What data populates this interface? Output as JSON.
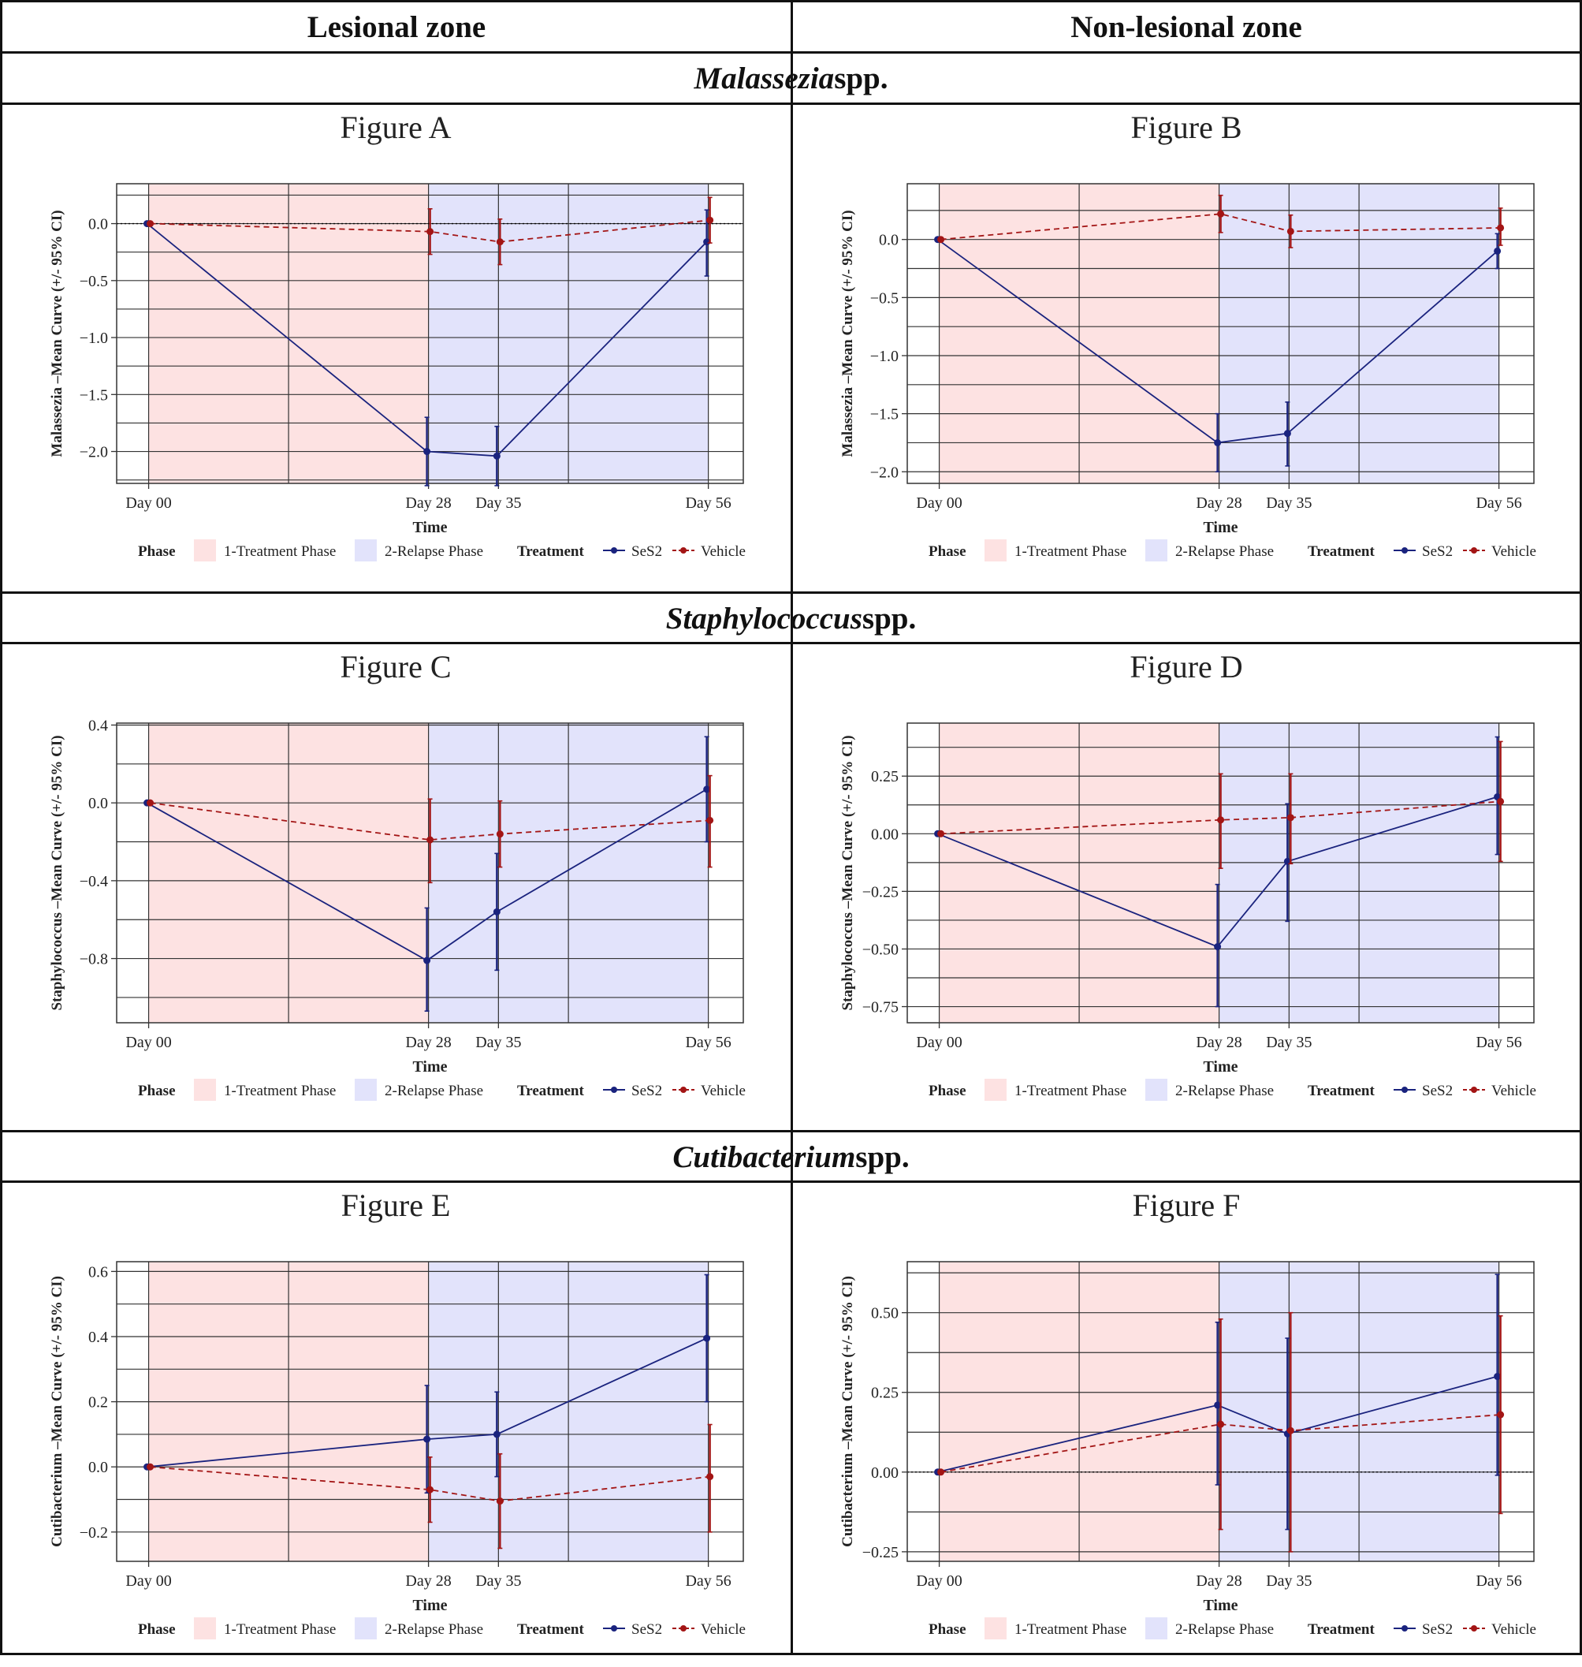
{
  "headers": {
    "lesional": "Lesional zone",
    "nonlesional": "Non-lesional zone"
  },
  "species": [
    {
      "name": "Malassezia",
      "suffix": " spp."
    },
    {
      "name": "Staphylococcus",
      "suffix": " spp."
    },
    {
      "name": "Cutibacterium",
      "suffix": " spp."
    }
  ],
  "legend": {
    "phase_title": "Phase",
    "phase1": "1-Treatment Phase",
    "phase2": "2-Relapse Phase",
    "treatment_title": "Treatment",
    "ses2": "SeS2",
    "vehicle": "Vehicle"
  },
  "colors": {
    "phase1": "#fde2e2",
    "phase2": "#e2e3fb",
    "ses2": "#1a237e",
    "vehicle": "#a31515"
  },
  "chart_data": [
    {
      "type": "line",
      "title": "Figure A",
      "xlabel": "Time",
      "ylabel": "Malassezia –Mean Curve (+/- 95% CI)",
      "categories": [
        "Day 00",
        "Day 28",
        "Day 35",
        "Day 56"
      ],
      "x": [
        0,
        28,
        35,
        56
      ],
      "ylim": [
        -2.28,
        0.35
      ],
      "yticks": [
        0.0,
        -0.5,
        -1.0,
        -1.5,
        -2.0
      ],
      "ytick_labels": [
        "0.0",
        "−0.5",
        "−1.0",
        "−1.5",
        "−2.0"
      ],
      "zero_line": true,
      "series": [
        {
          "name": "SeS2",
          "values": [
            0.0,
            -2.0,
            -2.04,
            -0.16
          ],
          "ci_low": [
            0.0,
            -2.3,
            -2.3,
            -0.46
          ],
          "ci_high": [
            0.0,
            -1.7,
            -1.78,
            0.12
          ]
        },
        {
          "name": "Vehicle",
          "values": [
            0.0,
            -0.07,
            -0.16,
            0.03
          ],
          "ci_low": [
            0.0,
            -0.27,
            -0.36,
            -0.17
          ],
          "ci_high": [
            0.0,
            0.13,
            0.04,
            0.23
          ]
        }
      ]
    },
    {
      "type": "line",
      "title": "Figure B",
      "xlabel": "Time",
      "ylabel": "Malassezia –Mean Curve (+/- 95% CI)",
      "categories": [
        "Day 00",
        "Day 28",
        "Day 35",
        "Day 56"
      ],
      "x": [
        0,
        28,
        35,
        56
      ],
      "ylim": [
        -2.1,
        0.48
      ],
      "yticks": [
        0.0,
        -0.5,
        -1.0,
        -1.5,
        -2.0
      ],
      "ytick_labels": [
        "0.0",
        "−0.5",
        "−1.0",
        "−1.5",
        "−2.0"
      ],
      "zero_line": false,
      "series": [
        {
          "name": "SeS2",
          "values": [
            0.0,
            -1.75,
            -1.67,
            -0.1
          ],
          "ci_low": [
            0.0,
            -2.0,
            -1.95,
            -0.25
          ],
          "ci_high": [
            0.0,
            -1.5,
            -1.4,
            0.05
          ]
        },
        {
          "name": "Vehicle",
          "values": [
            0.0,
            0.22,
            0.07,
            0.1
          ],
          "ci_low": [
            0.0,
            0.06,
            -0.07,
            -0.05
          ],
          "ci_high": [
            0.0,
            0.38,
            0.21,
            0.27
          ]
        }
      ]
    },
    {
      "type": "line",
      "title": "Figure C",
      "xlabel": "Time",
      "ylabel": "Staphylococcus –Mean Curve (+/- 95% CI)",
      "categories": [
        "Day 00",
        "Day 28",
        "Day 35",
        "Day 56"
      ],
      "x": [
        0,
        28,
        35,
        56
      ],
      "ylim": [
        -1.13,
        0.41
      ],
      "yticks": [
        0.4,
        0.0,
        -0.4,
        -0.8
      ],
      "ytick_labels": [
        "0.4",
        "0.0",
        "−0.4",
        "−0.8"
      ],
      "zero_line": false,
      "series": [
        {
          "name": "SeS2",
          "values": [
            0.0,
            -0.81,
            -0.56,
            0.07
          ],
          "ci_low": [
            0.0,
            -1.07,
            -0.86,
            -0.2
          ],
          "ci_high": [
            0.0,
            -0.54,
            -0.26,
            0.34
          ]
        },
        {
          "name": "Vehicle",
          "values": [
            0.0,
            -0.19,
            -0.16,
            -0.09
          ],
          "ci_low": [
            0.0,
            -0.41,
            -0.33,
            -0.33
          ],
          "ci_high": [
            0.0,
            0.02,
            0.01,
            0.14
          ]
        }
      ]
    },
    {
      "type": "line",
      "title": "Figure D",
      "xlabel": "Time",
      "ylabel": "Staphylococcus –Mean Curve (+/- 95% CI)",
      "categories": [
        "Day 00",
        "Day 28",
        "Day 35",
        "Day 56"
      ],
      "x": [
        0,
        28,
        35,
        56
      ],
      "ylim": [
        -0.82,
        0.48
      ],
      "yticks": [
        0.25,
        0.0,
        -0.25,
        -0.5,
        -0.75
      ],
      "ytick_labels": [
        "0.25",
        "0.00",
        "−0.25",
        "−0.50",
        "−0.75"
      ],
      "zero_line": false,
      "series": [
        {
          "name": "SeS2",
          "values": [
            0.0,
            -0.49,
            -0.12,
            0.16
          ],
          "ci_low": [
            0.0,
            -0.75,
            -0.38,
            -0.09
          ],
          "ci_high": [
            0.0,
            -0.22,
            0.13,
            0.42
          ]
        },
        {
          "name": "Vehicle",
          "values": [
            0.0,
            0.06,
            0.07,
            0.14
          ],
          "ci_low": [
            0.0,
            -0.15,
            -0.13,
            -0.12
          ],
          "ci_high": [
            0.0,
            0.26,
            0.26,
            0.4
          ]
        }
      ]
    },
    {
      "type": "line",
      "title": "Figure E",
      "xlabel": "Time",
      "ylabel": "Cutibacterium –Mean Curve (+/- 95% CI)",
      "categories": [
        "Day 00",
        "Day 28",
        "Day 35",
        "Day 56"
      ],
      "x": [
        0,
        28,
        35,
        56
      ],
      "ylim": [
        -0.29,
        0.63
      ],
      "yticks": [
        0.6,
        0.4,
        0.2,
        0.0,
        -0.2
      ],
      "ytick_labels": [
        "0.6",
        "0.4",
        "0.2",
        "0.0",
        "−0.2"
      ],
      "zero_line": false,
      "series": [
        {
          "name": "SeS2",
          "values": [
            0.0,
            0.085,
            0.1,
            0.395
          ],
          "ci_low": [
            0.0,
            -0.08,
            -0.03,
            0.2
          ],
          "ci_high": [
            0.0,
            0.25,
            0.23,
            0.59
          ]
        },
        {
          "name": "Vehicle",
          "values": [
            0.0,
            -0.07,
            -0.105,
            -0.03
          ],
          "ci_low": [
            0.0,
            -0.17,
            -0.25,
            -0.2
          ],
          "ci_high": [
            0.0,
            0.03,
            0.04,
            0.13
          ]
        }
      ]
    },
    {
      "type": "line",
      "title": "Figure F",
      "xlabel": "Time",
      "ylabel": "Cutibacterium –Mean Curve (+/- 95% CI)",
      "categories": [
        "Day 00",
        "Day 28",
        "Day 35",
        "Day 56"
      ],
      "x": [
        0,
        28,
        35,
        56
      ],
      "ylim": [
        -0.28,
        0.66
      ],
      "yticks": [
        0.5,
        0.25,
        0.0,
        -0.25
      ],
      "ytick_labels": [
        "0.50",
        "0.25",
        "0.00",
        "−0.25"
      ],
      "zero_line": true,
      "series": [
        {
          "name": "SeS2",
          "values": [
            0.0,
            0.21,
            0.12,
            0.3
          ],
          "ci_low": [
            0.0,
            -0.04,
            -0.18,
            -0.01
          ],
          "ci_high": [
            0.0,
            0.47,
            0.42,
            0.62
          ]
        },
        {
          "name": "Vehicle",
          "values": [
            0.0,
            0.15,
            0.13,
            0.18
          ],
          "ci_low": [
            0.0,
            -0.18,
            -0.25,
            -0.13
          ],
          "ci_high": [
            0.0,
            0.48,
            0.5,
            0.49
          ]
        }
      ]
    }
  ]
}
